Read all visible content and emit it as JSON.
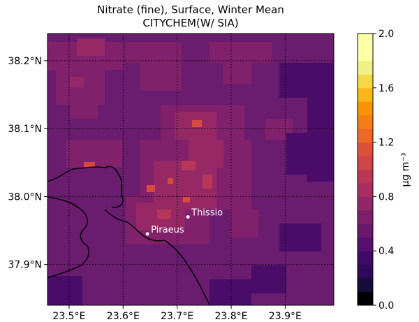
{
  "title": {
    "line1": "Nitrate (fine), Surface, Winter Mean",
    "line2": "CITYCHEM(W/ SIA)"
  },
  "map": {
    "lon_range": [
      23.46,
      23.99
    ],
    "lat_range": [
      37.84,
      38.24
    ],
    "lon_ticks": [
      {
        "value": 23.5,
        "label": "23.5°E"
      },
      {
        "value": 23.6,
        "label": "23.6°E"
      },
      {
        "value": 23.7,
        "label": "23.7°E"
      },
      {
        "value": 23.8,
        "label": "23.8°E"
      },
      {
        "value": 23.9,
        "label": "23.9°E"
      }
    ],
    "lat_ticks": [
      {
        "value": 38.2,
        "label": "38.2°N"
      },
      {
        "value": 38.1,
        "label": "38.1°N"
      },
      {
        "value": 38.0,
        "label": "38.0°N"
      },
      {
        "value": 37.9,
        "label": "37.9°N"
      }
    ],
    "gridlines": "dotted",
    "background_color": "#6a1c6e",
    "coastline_color": "#000000",
    "cities": [
      {
        "name": "Thissio",
        "lon": 23.72,
        "lat": 37.97
      },
      {
        "name": "Piraeus",
        "lon": 23.645,
        "lat": 37.945
      }
    ]
  },
  "colorbar": {
    "label": "μg m⁻³",
    "range": [
      0.0,
      2.0
    ],
    "tick_labels": [
      "0.0",
      "0.4",
      "0.8",
      "1.2",
      "1.6",
      "2.0"
    ],
    "ticks": [
      0.0,
      0.4,
      0.8,
      1.2,
      1.6,
      2.0
    ],
    "colors": [
      "#000004",
      "#160b39",
      "#2f0a5b",
      "#420a68",
      "#57106e",
      "#6a176e",
      "#7f1e6c",
      "#932667",
      "#a82e5f",
      "#bc3754",
      "#cf4446",
      "#dd513a",
      "#ed6925",
      "#f57d15",
      "#fa9407",
      "#fbb61a",
      "#f6d746",
      "#f0f185",
      "#fcffa4",
      "#fcffa4"
    ]
  }
}
